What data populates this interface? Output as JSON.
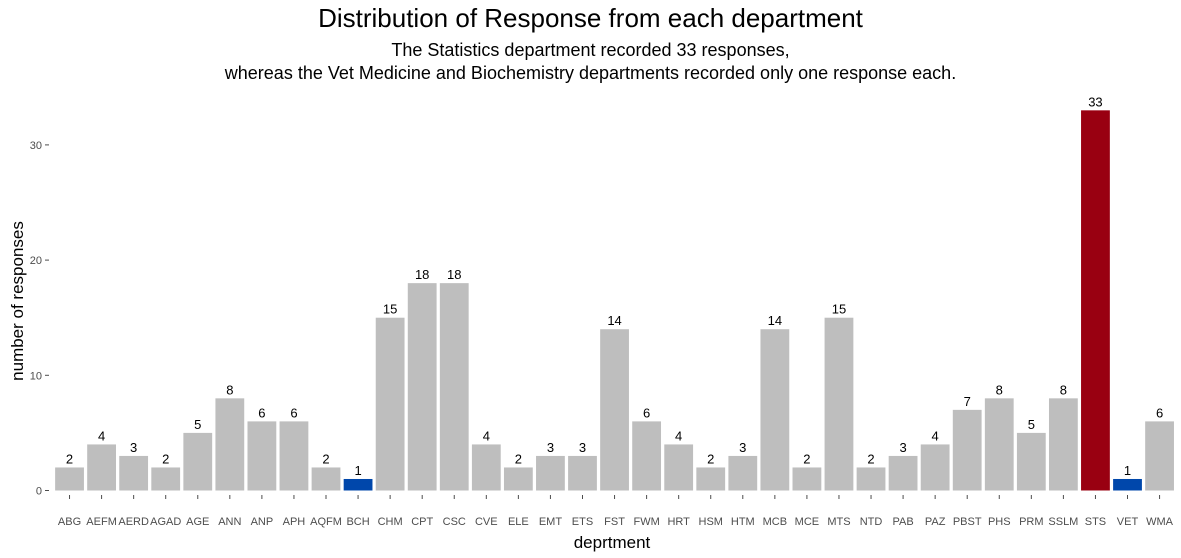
{
  "chart_data": {
    "type": "bar",
    "title": "Distribution of Response from each department",
    "subtitle_lines": [
      "The Statistics department recorded 33 responses,",
      "whereas the Vet Medicine and Biochemistry departments recorded only one response each."
    ],
    "xlabel": "deprtment",
    "ylabel": "number of responses",
    "ylim": [
      0,
      33
    ],
    "yticks": [
      0,
      10,
      20,
      30
    ],
    "grid": false,
    "categories": [
      "ABG",
      "AEFM",
      "AERD",
      "AGAD",
      "AGE",
      "ANN",
      "ANP",
      "APH",
      "AQFM",
      "BCH",
      "CHM",
      "CPT",
      "CSC",
      "CVE",
      "ELE",
      "EMT",
      "ETS",
      "FST",
      "FWM",
      "HRT",
      "HSM",
      "HTM",
      "MCB",
      "MCE",
      "MTS",
      "NTD",
      "PAB",
      "PAZ",
      "PBST",
      "PHS",
      "PRM",
      "SSLM",
      "STS",
      "VET",
      "WMA"
    ],
    "values": [
      2,
      4,
      3,
      2,
      5,
      8,
      6,
      6,
      2,
      1,
      15,
      18,
      18,
      4,
      2,
      3,
      3,
      14,
      6,
      4,
      2,
      3,
      14,
      2,
      15,
      2,
      3,
      4,
      7,
      8,
      5,
      8,
      33,
      1,
      6
    ],
    "colors": {
      "default": "#bebebe",
      "highlight_max": "#990011",
      "highlight_min": "#0047ab"
    },
    "highlight_max": [
      "STS"
    ],
    "highlight_min": [
      "BCH",
      "VET"
    ]
  }
}
